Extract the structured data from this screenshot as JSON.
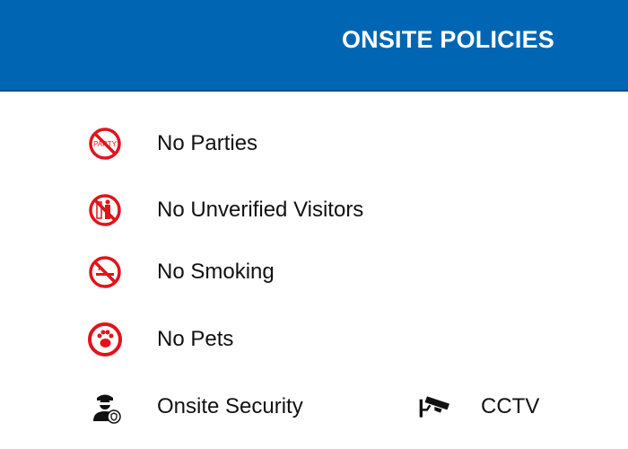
{
  "header": {
    "title": "ONSITE POLICIES",
    "background": "#0066b3"
  },
  "policies": [
    {
      "label": "No Parties",
      "icon": "no-party-icon",
      "icon_text": "PARTY"
    },
    {
      "label": "No Unverified Visitors",
      "icon": "no-visitors-icon"
    },
    {
      "label": "No Smoking",
      "icon": "no-smoking-icon"
    },
    {
      "label": "No Pets",
      "icon": "no-pets-icon"
    },
    {
      "label": "Onsite Security",
      "icon": "security-guard-icon"
    },
    {
      "label": "CCTV",
      "icon": "cctv-camera-icon"
    }
  ],
  "colors": {
    "prohibition": "#e0141b",
    "text": "#111111"
  }
}
